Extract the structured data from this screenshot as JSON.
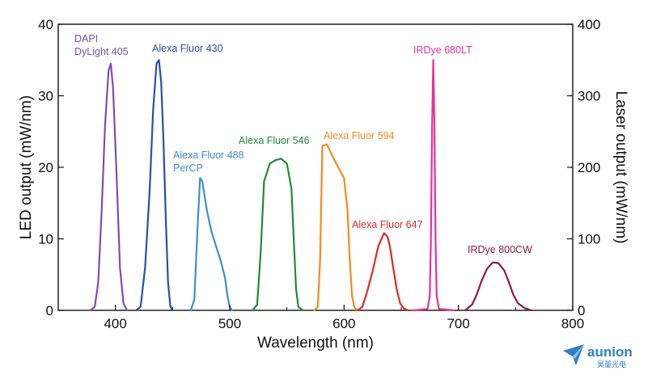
{
  "chart_data": {
    "type": "line",
    "title": "",
    "xlabel": "Wavelength (nm)",
    "ylabel": "LED output (mW/nm)",
    "y2label": "Laser output (mW/nm)",
    "xlim": [
      350,
      800
    ],
    "ylim": [
      0,
      40
    ],
    "y2lim": [
      0,
      400
    ],
    "xticks": [
      "400",
      "500",
      "600",
      "700",
      "800"
    ],
    "yticks": [
      "0",
      "10",
      "20",
      "30",
      "40"
    ],
    "y2ticks": [
      "0",
      "100",
      "200",
      "300",
      "400"
    ],
    "grid": false,
    "legend": "none (labels placed next to curves)",
    "series": [
      {
        "name": "DAPI\nDyLight 405",
        "axis": "left",
        "color": "#7b4fb0",
        "x": [
          378,
          382,
          385,
          388,
          391,
          394,
          396,
          398,
          401,
          404,
          407,
          410
        ],
        "y": [
          0,
          0.5,
          4,
          14,
          26,
          33.5,
          34.5,
          31,
          19,
          6,
          1,
          0
        ]
      },
      {
        "name": "Alexa Fluor 430",
        "axis": "left",
        "color": "#2a4fa8",
        "x": [
          418,
          422,
          426,
          430,
          433,
          436,
          438,
          440,
          442,
          444,
          446,
          448,
          450
        ],
        "y": [
          0,
          0.5,
          6,
          17,
          28,
          34.5,
          35,
          32,
          24,
          13,
          4,
          0.6,
          0
        ]
      },
      {
        "name": "Alexa Fluor 488\nPerCP",
        "axis": "left",
        "color": "#3f8fd0",
        "x": [
          466,
          469,
          472,
          474,
          476,
          480,
          484,
          488,
          492,
          496,
          498,
          500,
          502
        ],
        "y": [
          0,
          1.5,
          12,
          18.5,
          18,
          14,
          11,
          9,
          7,
          4.5,
          2,
          0.5,
          0
        ]
      },
      {
        "name": "Alexa Fluor 546",
        "axis": "left",
        "color": "#1f8a3a",
        "x": [
          520,
          524,
          527,
          530,
          535,
          540,
          545,
          550,
          554,
          556,
          558,
          560,
          564
        ],
        "y": [
          0,
          0.8,
          8,
          18,
          20.5,
          21,
          21.2,
          20.5,
          17,
          10,
          3,
          0.5,
          0
        ]
      },
      {
        "name": "Alexa Fluor 594",
        "axis": "left",
        "color": "#f28a20",
        "x": [
          574,
          577,
          579,
          581,
          585,
          590,
          595,
          600,
          603,
          605,
          607,
          609,
          612
        ],
        "y": [
          0,
          0.5,
          7,
          23,
          23.2,
          21.5,
          20,
          18.5,
          14,
          7,
          2,
          0.4,
          0
        ]
      },
      {
        "name": "Alexa Fluor 647",
        "axis": "left",
        "color": "#e02828",
        "x": [
          612,
          616,
          620,
          625,
          630,
          635,
          638,
          640,
          643,
          646,
          649,
          652,
          656
        ],
        "y": [
          0,
          0.5,
          2.5,
          5.5,
          9,
          10.8,
          10.3,
          9,
          6,
          3,
          1,
          0.3,
          0
        ]
      },
      {
        "name": "IRDye 680LT",
        "axis": "right",
        "color": "#e8319a",
        "x": [
          660,
          673,
          675,
          676,
          677,
          678,
          679,
          680,
          681,
          683,
          696
        ],
        "y": [
          0,
          2,
          20,
          100,
          260,
          350,
          260,
          100,
          20,
          2,
          0
        ]
      },
      {
        "name": "IRDye 800CW",
        "axis": "left",
        "color": "#8b1c3c",
        "x": [
          706,
          712,
          716,
          720,
          725,
          730,
          735,
          740,
          744,
          748,
          752,
          758,
          764
        ],
        "y": [
          0,
          0.8,
          2.2,
          4,
          5.8,
          6.7,
          6.6,
          5.6,
          4,
          2.2,
          1,
          0.3,
          0
        ]
      }
    ]
  },
  "logo": {
    "name": "aunion",
    "subtitle": "昊量光电",
    "icon": "paper-plane-icon",
    "color": "#2f7fc4"
  }
}
